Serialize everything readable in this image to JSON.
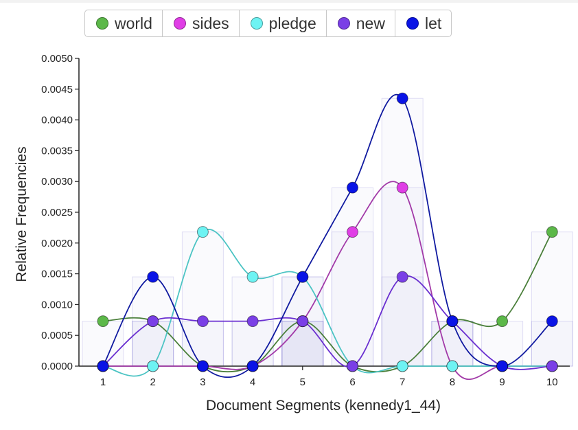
{
  "chart_data": {
    "type": "line",
    "title": "",
    "xlabel": "Document Segments (kennedy1_44)",
    "ylabel": "Relative Frequencies",
    "ylim": [
      0,
      0.005
    ],
    "yticks": [
      "0.0000",
      "0.0005",
      "0.0010",
      "0.0015",
      "0.0020",
      "0.0025",
      "0.0030",
      "0.0035",
      "0.0040",
      "0.0045",
      "0.0050"
    ],
    "categories": [
      "1",
      "2",
      "3",
      "4",
      "5",
      "6",
      "7",
      "8",
      "9",
      "10"
    ],
    "legend_position": "top",
    "series": [
      {
        "name": "world",
        "color": "#5cb849",
        "line": "#4a7f3a",
        "values": [
          0.00073,
          0.00073,
          0,
          0,
          0.00073,
          0,
          0,
          0.00073,
          0.00073,
          0.00218
        ]
      },
      {
        "name": "sides",
        "color": "#e03ee6",
        "line": "#a23aa8",
        "values": [
          0,
          0,
          0,
          0,
          0.00073,
          0.00218,
          0.0029,
          0,
          0,
          0
        ]
      },
      {
        "name": "pledge",
        "color": "#6ef3f3",
        "line": "#4cc4c4",
        "values": [
          0,
          0,
          0.00218,
          0.00145,
          0.00145,
          0,
          0,
          0,
          0,
          0
        ]
      },
      {
        "name": "new",
        "color": "#7a3fe6",
        "line": "#6a2fd0",
        "values": [
          0,
          0.00073,
          0.00073,
          0.00073,
          0.00073,
          0,
          0.00145,
          0.00073,
          0,
          0
        ]
      },
      {
        "name": "let",
        "color": "#0a14e6",
        "line": "#101aa0",
        "values": [
          0,
          0.00145,
          0,
          0,
          0.00145,
          0.0029,
          0.00435,
          0.00073,
          0,
          0.00073
        ]
      }
    ]
  }
}
